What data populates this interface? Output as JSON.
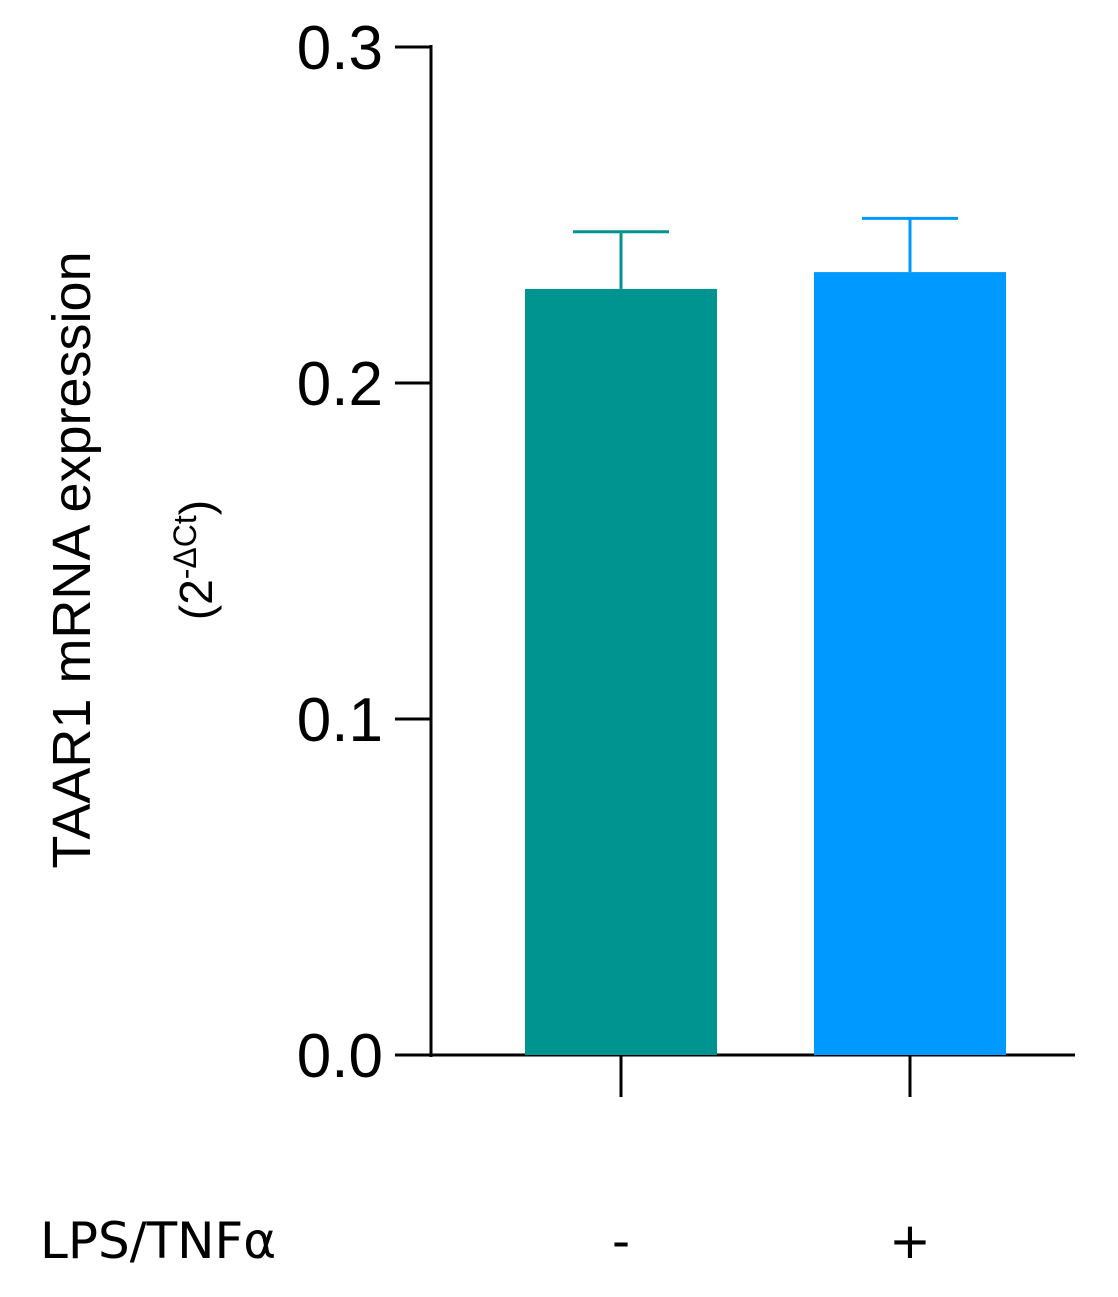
{
  "chart_data": {
    "type": "bar",
    "categories": [
      "-",
      "+"
    ],
    "values": [
      0.228,
      0.233
    ],
    "errors": [
      0.017,
      0.016
    ],
    "colors": [
      "#009490",
      "#0099ff"
    ],
    "ylim": [
      0,
      0.3
    ],
    "yticks": [
      "0.0",
      "0.1",
      "0.2",
      "0.3"
    ],
    "ylabel": "TAAR1 mRNA expression",
    "ylabel_sub": "(2",
    "ylabel_sup": "-ΔCt",
    "ylabel_close": ")",
    "xlabel": "LPS/TNFα",
    "grid": false,
    "legend": "none"
  }
}
